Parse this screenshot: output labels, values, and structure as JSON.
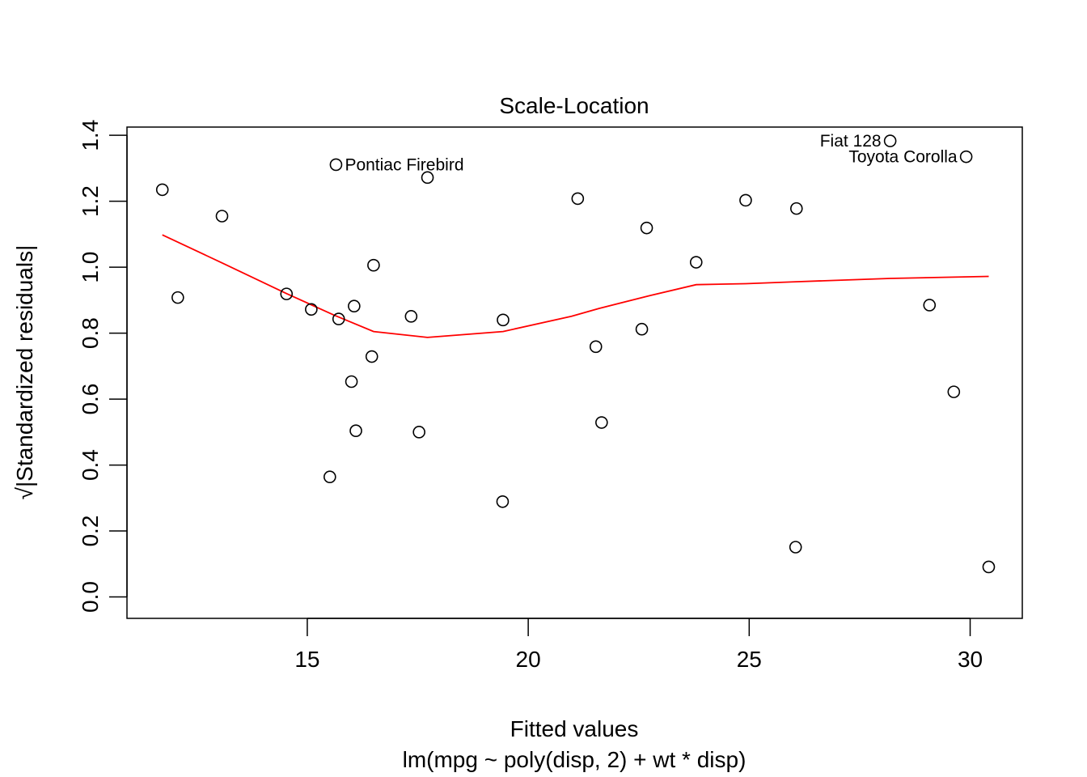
{
  "chart_data": {
    "type": "scatter",
    "title": "Scale-Location",
    "xlabel": "Fitted values",
    "xlabel_sub": "lm(mpg ~ poly(disp, 2) + wt * disp)",
    "ylabel": "√|Standardized residuals|",
    "xlim": [
      10.92,
      31.18
    ],
    "ylim": [
      -0.065,
      1.425
    ],
    "xticks": [
      15,
      20,
      25,
      30
    ],
    "xtick_labels": [
      "15",
      "20",
      "25",
      "30"
    ],
    "yticks": [
      0.0,
      0.2,
      0.4,
      0.6,
      0.8,
      1.0,
      1.2,
      1.4
    ],
    "ytick_labels": [
      "0.0",
      "0.2",
      "0.4",
      "0.6",
      "0.8",
      "1.0",
      "1.2",
      "1.4"
    ],
    "points": [
      {
        "x": 11.72,
        "y": 1.235
      },
      {
        "x": 12.07,
        "y": 0.908
      },
      {
        "x": 13.07,
        "y": 1.155
      },
      {
        "x": 14.53,
        "y": 0.919
      },
      {
        "x": 15.09,
        "y": 0.872
      },
      {
        "x": 15.51,
        "y": 0.364
      },
      {
        "x": 15.65,
        "y": 1.311,
        "label": "Pontiac Firebird"
      },
      {
        "x": 15.71,
        "y": 0.843
      },
      {
        "x": 16.0,
        "y": 0.653
      },
      {
        "x": 16.06,
        "y": 0.882
      },
      {
        "x": 16.1,
        "y": 0.504
      },
      {
        "x": 16.46,
        "y": 0.729
      },
      {
        "x": 16.5,
        "y": 1.006
      },
      {
        "x": 17.35,
        "y": 0.851
      },
      {
        "x": 17.53,
        "y": 0.5
      },
      {
        "x": 17.72,
        "y": 1.272
      },
      {
        "x": 19.42,
        "y": 0.289
      },
      {
        "x": 19.43,
        "y": 0.84
      },
      {
        "x": 21.12,
        "y": 1.208
      },
      {
        "x": 21.53,
        "y": 0.759
      },
      {
        "x": 21.66,
        "y": 0.529
      },
      {
        "x": 22.57,
        "y": 0.812
      },
      {
        "x": 22.68,
        "y": 1.119
      },
      {
        "x": 23.8,
        "y": 1.015
      },
      {
        "x": 24.92,
        "y": 1.203
      },
      {
        "x": 26.05,
        "y": 0.151
      },
      {
        "x": 26.07,
        "y": 1.178
      },
      {
        "x": 28.19,
        "y": 1.383,
        "label": "Fiat 128"
      },
      {
        "x": 29.08,
        "y": 0.885
      },
      {
        "x": 29.63,
        "y": 0.622
      },
      {
        "x": 29.91,
        "y": 1.335,
        "label": "Toyota Corolla"
      },
      {
        "x": 30.42,
        "y": 0.091
      }
    ],
    "smoother": {
      "color": "#ff0000",
      "x": [
        11.72,
        13.07,
        14.53,
        15.6,
        16.5,
        17.72,
        19.43,
        20.98,
        21.6,
        22.75,
        23.8,
        24.92,
        26.06,
        28.19,
        29.63,
        30.42
      ],
      "y": [
        1.098,
        1.013,
        0.92,
        0.855,
        0.805,
        0.787,
        0.805,
        0.851,
        0.875,
        0.914,
        0.947,
        0.95,
        0.956,
        0.966,
        0.97,
        0.972
      ]
    },
    "grid": false,
    "legend": "none"
  }
}
